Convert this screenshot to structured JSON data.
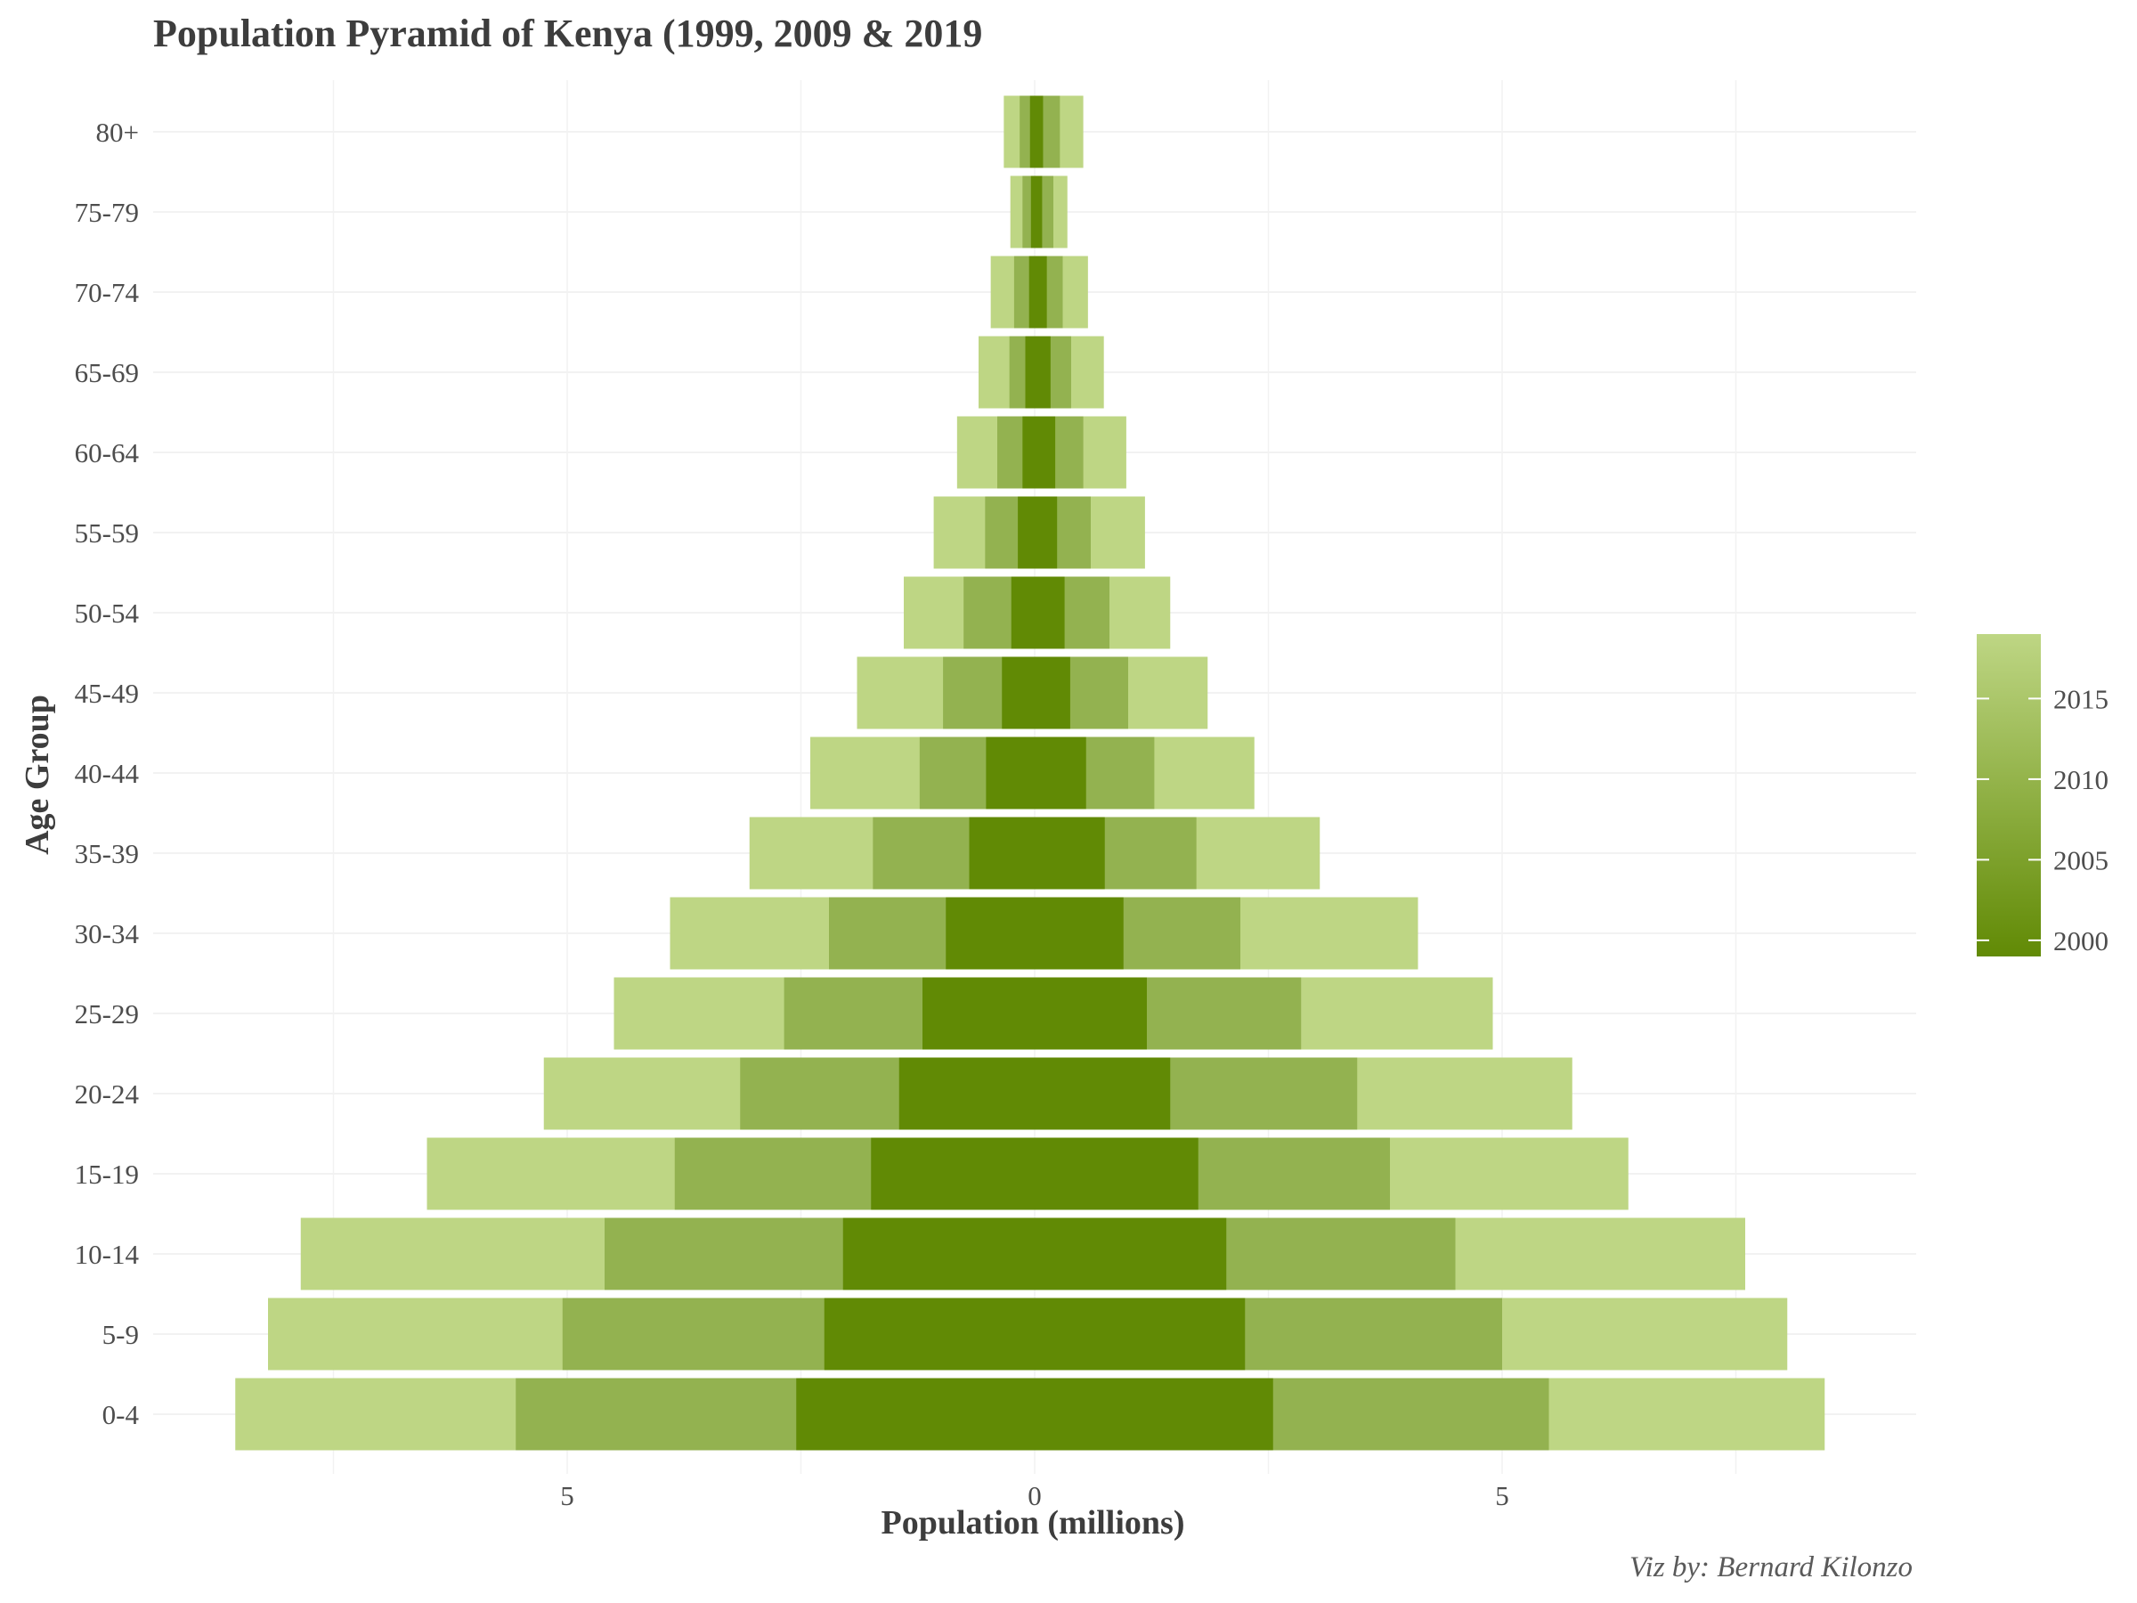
{
  "chart_data": {
    "type": "bar",
    "orientation": "horizontal",
    "title": "Population Pyramid of Kenya (1999, 2009 & 2019",
    "xlabel": "Population (millions)",
    "ylabel": "Age Group",
    "caption": "Viz by: Bernard Kilonzo",
    "categories": [
      "0-4",
      "5-9",
      "10-14",
      "15-19",
      "20-24",
      "25-29",
      "30-34",
      "35-39",
      "40-44",
      "45-49",
      "50-54",
      "55-59",
      "60-64",
      "65-69",
      "70-74",
      "75-79",
      "80+"
    ],
    "xlim": [
      -8.5,
      9.2
    ],
    "xticks": [
      -5,
      0,
      5
    ],
    "xtick_labels": [
      "5",
      "0",
      "5"
    ],
    "grid": true,
    "legend": {
      "position": "right",
      "type": "colorbar",
      "range": [
        1999,
        2019
      ],
      "ticks": [
        2000,
        2005,
        2010,
        2015
      ],
      "color_low": "#618a05",
      "color_high": "#bed684"
    },
    "series": [
      {
        "year": 2019,
        "color": "#bed684",
        "left": [
          8.55,
          8.2,
          7.85,
          6.5,
          5.25,
          4.5,
          3.9,
          3.05,
          2.4,
          1.9,
          1.4,
          1.08,
          0.83,
          0.6,
          0.47,
          0.26,
          0.33
        ],
        "right": [
          8.45,
          8.05,
          7.6,
          6.35,
          5.75,
          4.9,
          4.1,
          3.05,
          2.35,
          1.85,
          1.45,
          1.18,
          0.98,
          0.74,
          0.57,
          0.35,
          0.52
        ]
      },
      {
        "year": 2009,
        "color": "#93b250",
        "left": [
          5.55,
          5.05,
          4.6,
          3.85,
          3.15,
          2.68,
          2.2,
          1.73,
          1.23,
          0.98,
          0.76,
          0.53,
          0.4,
          0.27,
          0.22,
          0.13,
          0.16
        ],
        "right": [
          5.5,
          5.0,
          4.5,
          3.8,
          3.45,
          2.85,
          2.2,
          1.73,
          1.28,
          1.0,
          0.8,
          0.6,
          0.52,
          0.39,
          0.3,
          0.2,
          0.27
        ]
      },
      {
        "year": 1999,
        "color": "#618a05",
        "left": [
          2.55,
          2.25,
          2.05,
          1.75,
          1.45,
          1.2,
          0.95,
          0.7,
          0.52,
          0.35,
          0.25,
          0.18,
          0.13,
          0.1,
          0.06,
          0.04,
          0.05
        ],
        "right": [
          2.55,
          2.25,
          2.05,
          1.75,
          1.45,
          1.2,
          0.95,
          0.75,
          0.55,
          0.38,
          0.32,
          0.24,
          0.22,
          0.17,
          0.13,
          0.08,
          0.09
        ]
      }
    ]
  }
}
